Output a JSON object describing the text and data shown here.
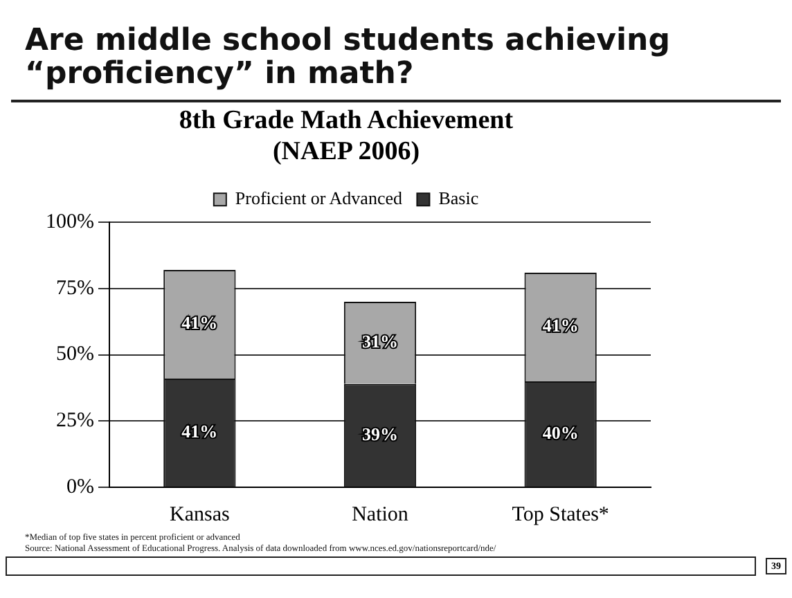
{
  "chart_data": {
    "type": "bar",
    "title": "Are middle school students achieving “proficiency” in math?",
    "subtitle": "8th Grade Math Achievement (NAEP 2006)",
    "categories": [
      "Kansas",
      "Nation",
      "Top States*"
    ],
    "series": [
      {
        "name": "Basic",
        "color": "#333333",
        "values": [
          41,
          39,
          40
        ],
        "value_labels": [
          "41%",
          "39%",
          "40%"
        ]
      },
      {
        "name": "Proficient or Advanced",
        "color": "#a8a8a8",
        "values": [
          41,
          31,
          41
        ],
        "value_labels": [
          "41%",
          "31%",
          "41%"
        ]
      }
    ],
    "stacked": true,
    "ylim": [
      0,
      100
    ],
    "yticks": [
      {
        "value": 0,
        "label": "0%"
      },
      {
        "value": 25,
        "label": "25%"
      },
      {
        "value": 50,
        "label": "50%"
      },
      {
        "value": 75,
        "label": "75%"
      },
      {
        "value": 100,
        "label": "100%"
      }
    ],
    "grid": "y",
    "legend": "top",
    "annotations": [
      "*Median of top five states in percent proficient or advanced",
      "Source: National Assessment of Educational Progress. Analysis of data downloaded from www.nces.ed.gov/nationsreportcard/nde/",
      "39"
    ]
  }
}
